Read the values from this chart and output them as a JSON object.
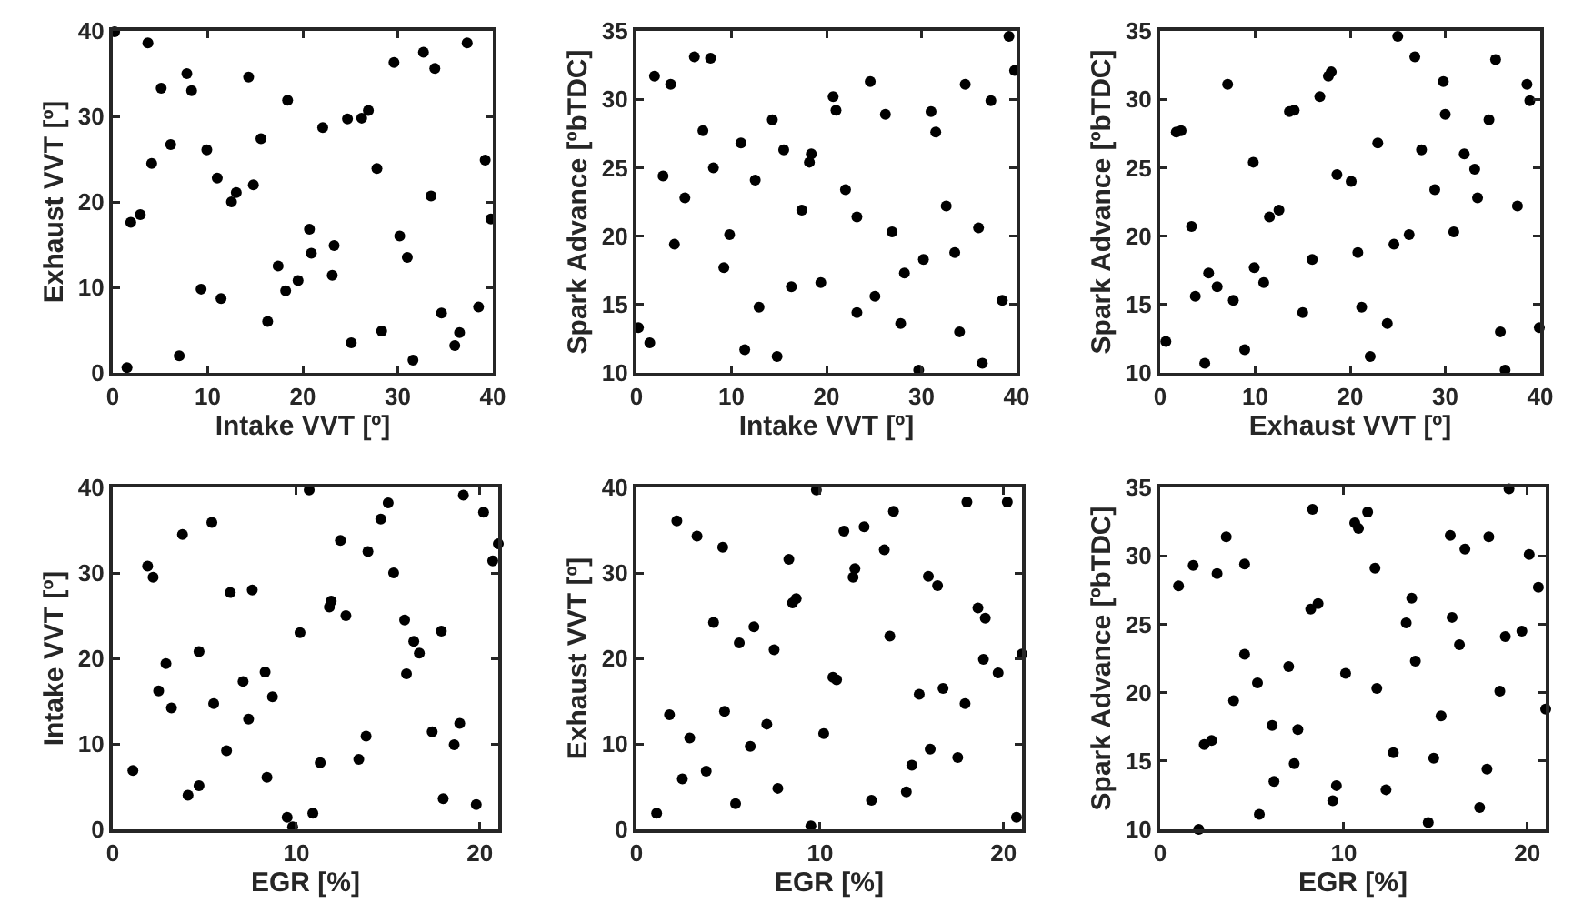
{
  "chart_data": [
    {
      "type": "scatter",
      "xlabel": "Intake VVT [º]",
      "ylabel": "Exhaust VVT [º]",
      "xlim": [
        0,
        40
      ],
      "xticks": [
        0,
        10,
        20,
        30,
        40
      ],
      "ylim": [
        0,
        40
      ],
      "yticks": [
        0,
        10,
        20,
        30,
        40
      ],
      "marker": "circle",
      "grid": false,
      "series": [
        {
          "color": "#000000",
          "x": [
            0.2,
            3.7,
            1.5,
            1.9,
            2.9,
            4.1,
            5.1,
            6.1,
            7.8,
            8.3,
            7.0,
            9.3,
            9.9,
            11.0,
            11.4,
            12.5,
            13.0,
            14.3,
            14.8,
            15.6,
            16.3,
            17.4,
            18.2,
            18.4,
            19.5,
            20.7,
            20.9,
            22.1,
            23.1,
            23.3,
            24.7,
            25.1,
            26.2,
            26.9,
            27.8,
            28.3,
            29.6,
            30.2,
            31.0,
            31.6,
            32.7,
            33.5,
            33.9,
            34.6,
            36.0,
            36.5,
            37.3,
            38.5,
            39.2,
            39.8
          ],
          "values": [
            39.9,
            38.6,
            0.6,
            17.6,
            18.5,
            24.5,
            33.3,
            26.7,
            35.0,
            33.0,
            2.0,
            9.8,
            26.1,
            22.8,
            8.7,
            20.0,
            21.1,
            34.6,
            22.0,
            27.4,
            6.0,
            12.5,
            9.6,
            31.9,
            10.8,
            16.8,
            14.0,
            28.7,
            11.4,
            14.9,
            29.7,
            3.5,
            29.8,
            30.7,
            23.9,
            4.9,
            36.3,
            16.0,
            13.5,
            1.5,
            37.5,
            20.7,
            35.6,
            7.0,
            3.2,
            4.7,
            38.6,
            7.7,
            24.9,
            18.0
          ]
        }
      ]
    },
    {
      "type": "scatter",
      "xlabel": "Intake VVT [º]",
      "ylabel": "Spark Advance [ºbTDC]",
      "xlim": [
        0,
        40
      ],
      "xticks": [
        0,
        10,
        20,
        30,
        40
      ],
      "ylim": [
        10,
        35
      ],
      "yticks": [
        10,
        15,
        20,
        25,
        30,
        35
      ],
      "marker": "circle",
      "grid": false,
      "series": [
        {
          "color": "#000000",
          "x": [
            0.2,
            1.4,
            1.9,
            2.8,
            3.6,
            4.0,
            6.1,
            7.0,
            7.8,
            8.1,
            9.2,
            9.8,
            11.0,
            11.4,
            12.5,
            12.9,
            14.3,
            14.8,
            15.5,
            16.3,
            17.4,
            18.2,
            18.4,
            19.4,
            20.7,
            21.0,
            22.0,
            23.2,
            23.2,
            24.6,
            25.1,
            26.2,
            26.9,
            28.2,
            27.8,
            30.2,
            29.7,
            31.0,
            31.5,
            32.6,
            33.5,
            34.0,
            34.6,
            36.0,
            36.4,
            37.3,
            38.5,
            39.2,
            39.8,
            5.1
          ],
          "values": [
            13.3,
            12.2,
            31.7,
            24.4,
            31.1,
            19.4,
            33.1,
            27.7,
            33.0,
            25.0,
            17.7,
            20.1,
            26.8,
            11.7,
            24.1,
            14.8,
            28.5,
            11.2,
            26.3,
            16.3,
            21.9,
            25.4,
            26.0,
            16.6,
            30.2,
            29.2,
            23.4,
            21.4,
            14.4,
            31.3,
            15.6,
            28.9,
            20.3,
            17.3,
            13.6,
            18.3,
            10.2,
            29.1,
            27.6,
            22.2,
            18.8,
            13.0,
            31.1,
            20.6,
            10.7,
            29.9,
            15.3,
            34.6,
            32.1,
            22.8
          ]
        }
      ]
    },
    {
      "type": "scatter",
      "xlabel": "Exhaust VVT [º]",
      "ylabel": "Spark Advance [ºbTDC]",
      "xlim": [
        0,
        40
      ],
      "xticks": [
        0,
        10,
        20,
        30,
        40
      ],
      "ylim": [
        10,
        35
      ],
      "yticks": [
        10,
        15,
        20,
        25,
        30,
        35
      ],
      "marker": "circle",
      "grid": false,
      "series": [
        {
          "color": "#000000",
          "x": [
            0.6,
            1.7,
            2.2,
            3.3,
            3.7,
            4.7,
            5.1,
            6.0,
            7.1,
            7.7,
            8.9,
            9.8,
            9.9,
            10.9,
            11.5,
            12.5,
            13.6,
            14.1,
            15.0,
            16.0,
            16.8,
            17.7,
            18.0,
            18.6,
            20.1,
            20.8,
            21.2,
            22.1,
            22.9,
            23.9,
            24.6,
            25.0,
            26.2,
            26.8,
            27.5,
            28.9,
            29.8,
            30.0,
            30.9,
            32.0,
            33.1,
            33.4,
            34.6,
            35.3,
            35.8,
            36.3,
            37.6,
            38.6,
            38.9,
            39.9
          ],
          "values": [
            12.3,
            27.6,
            27.7,
            20.7,
            15.6,
            10.7,
            17.3,
            16.3,
            31.1,
            15.3,
            11.7,
            25.4,
            17.7,
            16.6,
            21.4,
            21.9,
            29.1,
            29.2,
            14.4,
            18.3,
            30.2,
            31.7,
            32.0,
            24.5,
            24.0,
            18.8,
            14.8,
            11.2,
            26.8,
            13.6,
            19.4,
            34.6,
            20.1,
            33.1,
            26.3,
            23.4,
            31.3,
            28.9,
            20.3,
            26.0,
            24.9,
            22.8,
            28.5,
            32.9,
            13.0,
            10.2,
            22.2,
            31.1,
            29.9,
            13.3
          ]
        }
      ]
    },
    {
      "type": "scatter",
      "xlabel": "EGR [%]",
      "ylabel": "Intake VVT [º]",
      "xlim": [
        0,
        21
      ],
      "xticks": [
        0,
        10,
        20
      ],
      "ylim": [
        0,
        40
      ],
      "yticks": [
        0,
        10,
        20,
        30,
        40
      ],
      "marker": "circle",
      "grid": false,
      "series": [
        {
          "color": "#000000",
          "x": [
            1.1,
            1.9,
            2.2,
            2.5,
            2.9,
            3.2,
            3.8,
            4.1,
            4.7,
            4.7,
            5.4,
            5.5,
            6.2,
            6.4,
            7.1,
            7.4,
            7.6,
            8.3,
            8.4,
            8.7,
            9.5,
            9.8,
            10.2,
            10.7,
            10.9,
            11.3,
            11.8,
            11.9,
            12.4,
            12.7,
            13.4,
            13.8,
            13.9,
            14.6,
            15.0,
            15.3,
            15.9,
            16.0,
            16.4,
            16.7,
            17.4,
            17.9,
            18.0,
            18.6,
            18.9,
            19.1,
            19.8,
            20.2,
            20.7,
            21.0
          ],
          "values": [
            6.9,
            30.8,
            29.5,
            16.2,
            19.4,
            14.2,
            34.5,
            4.0,
            5.1,
            20.8,
            35.9,
            14.7,
            9.2,
            27.7,
            17.3,
            12.9,
            28.0,
            18.4,
            6.1,
            15.5,
            1.4,
            0.3,
            23.0,
            39.7,
            1.9,
            7.8,
            26.0,
            26.7,
            33.8,
            25.0,
            8.2,
            10.9,
            32.5,
            36.3,
            38.2,
            30.0,
            24.5,
            18.2,
            22.0,
            20.6,
            11.4,
            23.2,
            3.6,
            9.9,
            12.4,
            39.1,
            2.9,
            37.1,
            31.4,
            33.4
          ]
        }
      ]
    },
    {
      "type": "scatter",
      "xlabel": "EGR [%]",
      "ylabel": "Exhaust VVT [º]",
      "xlim": [
        0,
        21
      ],
      "xticks": [
        0,
        10,
        20
      ],
      "ylim": [
        0,
        40
      ],
      "yticks": [
        0,
        10,
        20,
        30,
        40
      ],
      "marker": "circle",
      "grid": false,
      "series": [
        {
          "color": "#000000",
          "x": [
            1.1,
            1.8,
            2.2,
            2.5,
            2.9,
            3.3,
            3.8,
            4.2,
            4.7,
            4.8,
            5.4,
            5.6,
            6.2,
            6.4,
            7.1,
            7.5,
            7.7,
            8.3,
            8.5,
            8.7,
            9.5,
            9.8,
            10.2,
            10.7,
            10.9,
            11.3,
            11.8,
            11.9,
            12.4,
            12.8,
            13.5,
            13.8,
            14.0,
            14.7,
            15.0,
            15.4,
            15.9,
            16.0,
            16.4,
            16.7,
            17.5,
            17.9,
            18.0,
            18.6,
            19.0,
            18.9,
            19.7,
            20.2,
            20.7,
            21.0
          ],
          "values": [
            1.9,
            13.4,
            36.1,
            5.9,
            10.7,
            34.3,
            6.8,
            24.2,
            33.0,
            13.8,
            3.0,
            21.8,
            9.7,
            23.7,
            12.3,
            21.0,
            4.8,
            31.6,
            26.5,
            27.0,
            0.4,
            39.7,
            11.2,
            17.8,
            17.5,
            34.9,
            29.5,
            30.5,
            35.4,
            3.4,
            32.7,
            22.6,
            37.2,
            4.4,
            7.5,
            15.8,
            29.6,
            9.4,
            28.5,
            16.5,
            8.4,
            14.7,
            38.3,
            25.9,
            24.7,
            19.9,
            18.3,
            38.3,
            1.4,
            20.5
          ]
        }
      ]
    },
    {
      "type": "scatter",
      "xlabel": "EGR [%]",
      "ylabel": "Spark Advance [ºbTDC]",
      "xlim": [
        0,
        21
      ],
      "xticks": [
        0,
        10,
        20
      ],
      "ylim": [
        10,
        35
      ],
      "yticks": [
        10,
        15,
        20,
        25,
        30,
        35
      ],
      "marker": "circle",
      "grid": false,
      "series": [
        {
          "color": "#000000",
          "x": [
            1.0,
            1.8,
            2.1,
            2.4,
            2.8,
            3.1,
            3.6,
            4.0,
            4.6,
            4.6,
            5.3,
            5.4,
            6.1,
            6.2,
            7.0,
            7.3,
            7.5,
            8.2,
            8.3,
            8.6,
            9.4,
            9.6,
            10.1,
            10.6,
            10.8,
            11.3,
            11.7,
            11.8,
            12.3,
            12.7,
            13.4,
            13.7,
            13.9,
            14.6,
            14.9,
            15.3,
            15.8,
            15.9,
            16.3,
            16.6,
            17.4,
            17.8,
            17.9,
            18.5,
            18.8,
            19.0,
            19.7,
            20.1,
            20.6,
            21.0
          ],
          "values": [
            27.8,
            29.3,
            10.0,
            16.2,
            16.5,
            28.7,
            31.4,
            19.4,
            22.8,
            29.4,
            20.7,
            11.1,
            17.6,
            13.5,
            21.9,
            14.8,
            17.3,
            26.1,
            33.4,
            26.5,
            12.1,
            13.2,
            21.4,
            32.4,
            32.0,
            33.2,
            29.1,
            20.3,
            12.9,
            15.6,
            25.1,
            26.9,
            22.3,
            10.5,
            15.2,
            18.3,
            31.5,
            25.5,
            23.5,
            30.5,
            11.6,
            14.4,
            31.4,
            20.1,
            24.1,
            34.9,
            24.5,
            30.1,
            27.7,
            18.8
          ]
        }
      ]
    }
  ]
}
